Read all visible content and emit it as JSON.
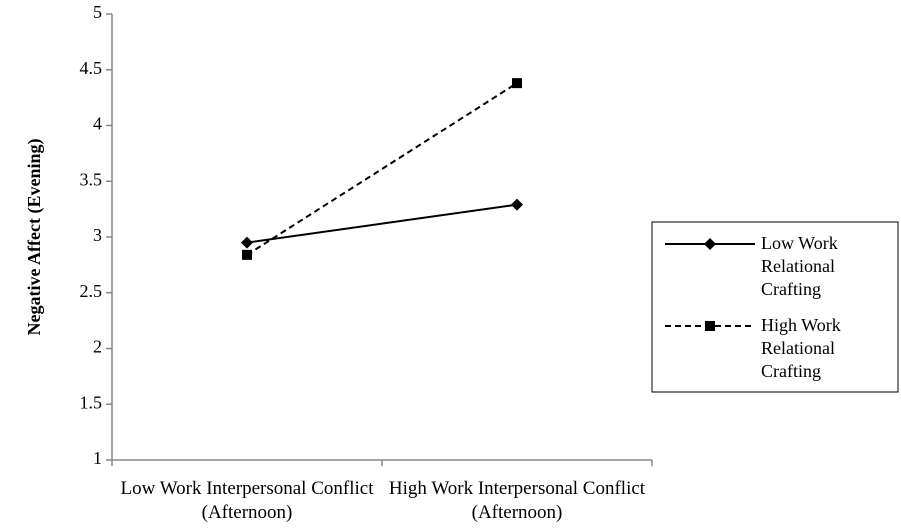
{
  "chart_data": {
    "type": "line",
    "y_label": "Negative Affect (Evening)",
    "categories": [
      "Low Work Interpersonal Conflict (Afternoon)",
      "High Work Interpersonal Conflict (Afternoon)"
    ],
    "series": [
      {
        "name": "Low Work Relational Crafting",
        "color": "#000000",
        "marker": "diamond",
        "dashed": false,
        "values": [
          2.95,
          3.29
        ]
      },
      {
        "name": "High Work Relational Crafting",
        "color": "#000000",
        "marker": "square",
        "dashed": true,
        "values": [
          2.84,
          4.38
        ]
      }
    ],
    "ylim": [
      1,
      5
    ],
    "yticks": [
      1,
      1.5,
      2,
      2.5,
      3,
      3.5,
      4,
      4.5,
      5
    ],
    "grid": false,
    "legend": "right"
  }
}
